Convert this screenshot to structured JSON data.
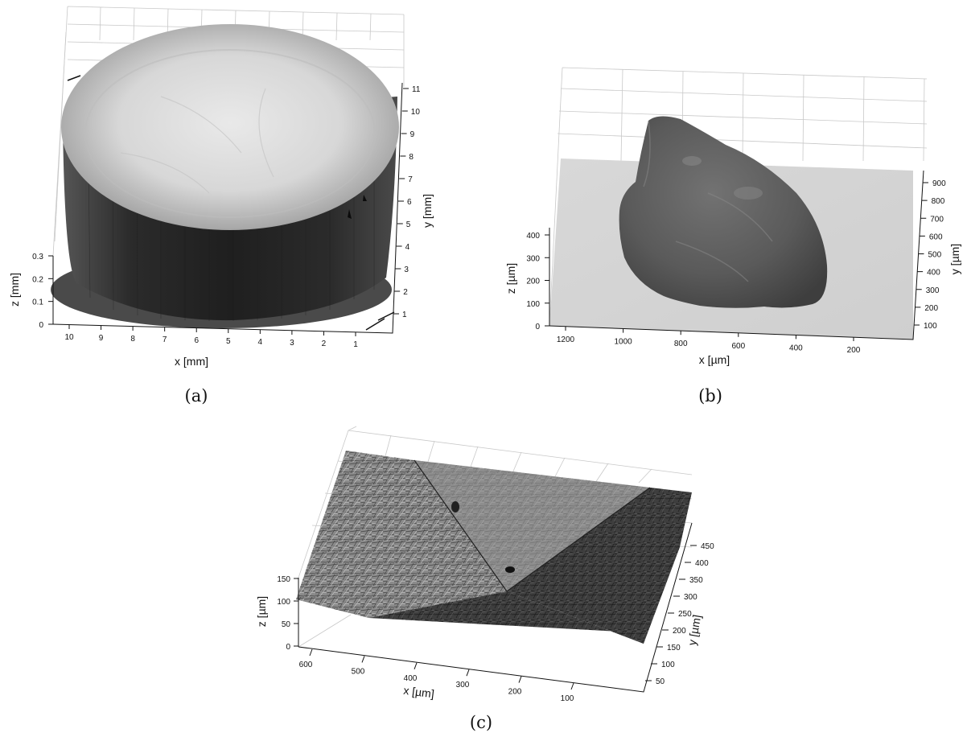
{
  "figure": {
    "panels": [
      {
        "id": "a",
        "caption": "(a)",
        "x_label": "x [mm]",
        "y_label": "y [mm]",
        "z_label": "z [mm]",
        "x_ticks": [
          "10",
          "9",
          "8",
          "7",
          "6",
          "5",
          "4",
          "3",
          "2",
          "1"
        ],
        "y_ticks": [
          "1",
          "2",
          "3",
          "4",
          "5",
          "6",
          "7",
          "8",
          "9",
          "10",
          "11"
        ],
        "z_ticks": [
          "0",
          "0.1",
          "0.2",
          "0.3"
        ]
      },
      {
        "id": "b",
        "caption": "(b)",
        "x_label": "x [µm]",
        "y_label": "y [µm]",
        "z_label": "z [µm]",
        "x_ticks": [
          "1200",
          "1000",
          "800",
          "600",
          "400",
          "200"
        ],
        "y_ticks": [
          "100",
          "200",
          "300",
          "400",
          "500",
          "600",
          "700",
          "800",
          "900"
        ],
        "z_ticks": [
          "0",
          "100",
          "200",
          "300",
          "400"
        ]
      },
      {
        "id": "c",
        "caption": "(c)",
        "x_label": "x [µm]",
        "y_label": "y [µm]",
        "z_label": "z [µm]",
        "x_ticks": [
          "600",
          "500",
          "400",
          "300",
          "200",
          "100"
        ],
        "y_ticks": [
          "50",
          "100",
          "150",
          "200",
          "250",
          "300",
          "350",
          "400",
          "450"
        ],
        "z_ticks": [
          "0",
          "50",
          "100",
          "150"
        ]
      }
    ]
  }
}
